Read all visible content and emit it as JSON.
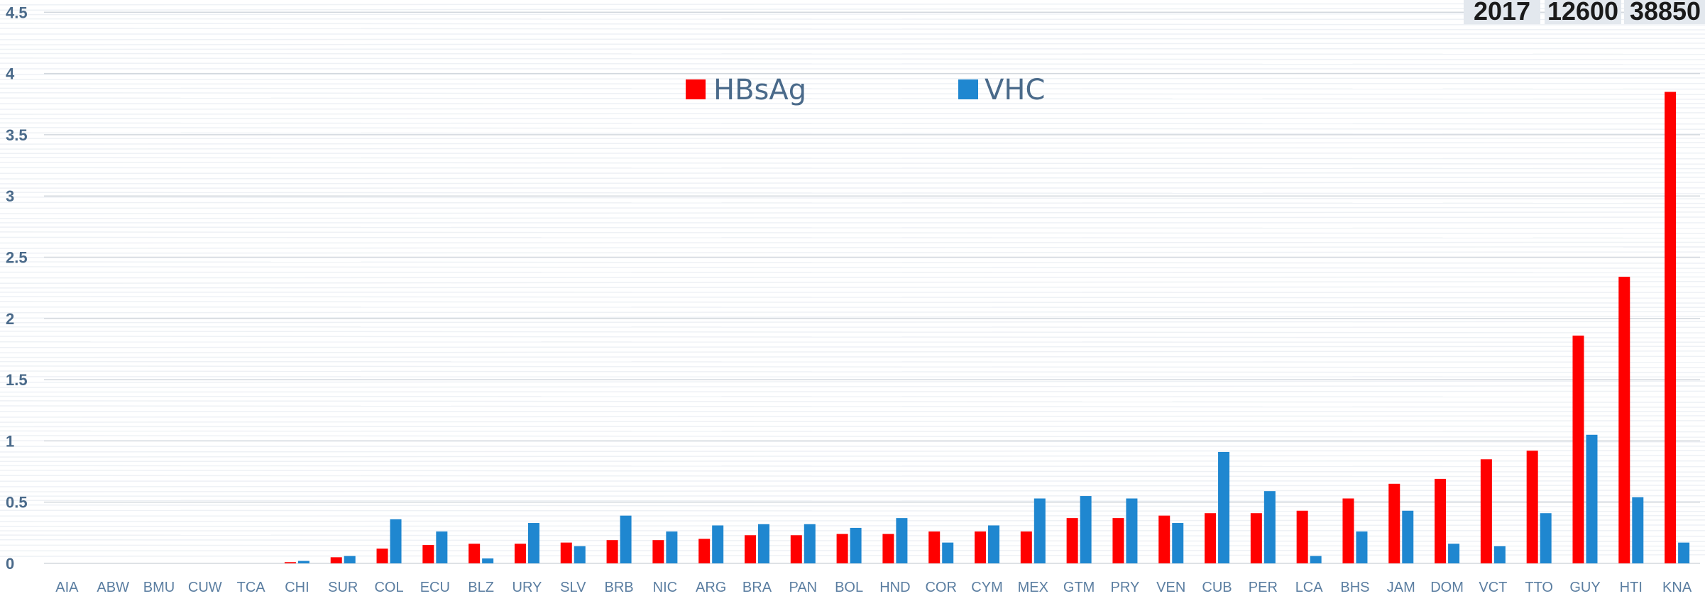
{
  "corner_table": {
    "cells": [
      "2017",
      "12600",
      "38850"
    ]
  },
  "chart_data": {
    "type": "bar",
    "title": "",
    "xlabel": "",
    "ylabel": "",
    "ylim": [
      0,
      4.5
    ],
    "yticks": [
      0,
      0.5,
      1,
      1.5,
      2,
      2.5,
      3,
      3.5,
      4,
      4.5
    ],
    "ytick_labels": [
      "0",
      "0.5",
      "1",
      "1.5",
      "2",
      "2.5",
      "3",
      "3.5",
      "4",
      "4.5"
    ],
    "grid": true,
    "legend": "top-center",
    "categories": [
      "AIA",
      "ABW",
      "BMU",
      "CUW",
      "TCA",
      "CHI",
      "SUR",
      "COL",
      "ECU",
      "BLZ",
      "URY",
      "SLV",
      "BRB",
      "NIC",
      "ARG",
      "BRA",
      "PAN",
      "BOL",
      "HND",
      "COR",
      "CYM",
      "MEX",
      "GTM",
      "PRY",
      "VEN",
      "CUB",
      "PER",
      "LCA",
      "BHS",
      "JAM",
      "DOM",
      "VCT",
      "TTO",
      "GUY",
      "HTI",
      "KNA"
    ],
    "series": [
      {
        "name": "HBsAg",
        "color": "#ff0000",
        "values": [
          0,
          0,
          0,
          0,
          0,
          0.01,
          0.05,
          0.12,
          0.15,
          0.16,
          0.16,
          0.17,
          0.19,
          0.19,
          0.2,
          0.23,
          0.23,
          0.24,
          0.24,
          0.26,
          0.26,
          0.26,
          0.37,
          0.37,
          0.39,
          0.41,
          0.41,
          0.43,
          0.53,
          0.65,
          0.69,
          0.85,
          0.92,
          1.86,
          2.34,
          3.85
        ]
      },
      {
        "name": "VHC",
        "color": "#1f87d0",
        "values": [
          0,
          0,
          0,
          0,
          0,
          0.02,
          0.06,
          0.36,
          0.26,
          0.04,
          0.33,
          0.14,
          0.39,
          0.26,
          0.31,
          0.32,
          0.32,
          0.29,
          0.37,
          0.17,
          0.31,
          0.53,
          0.55,
          0.53,
          0.33,
          0.91,
          0.59,
          0.06,
          0.26,
          0.43,
          0.16,
          0.14,
          0.41,
          1.05,
          0.54,
          0.17
        ]
      }
    ]
  }
}
